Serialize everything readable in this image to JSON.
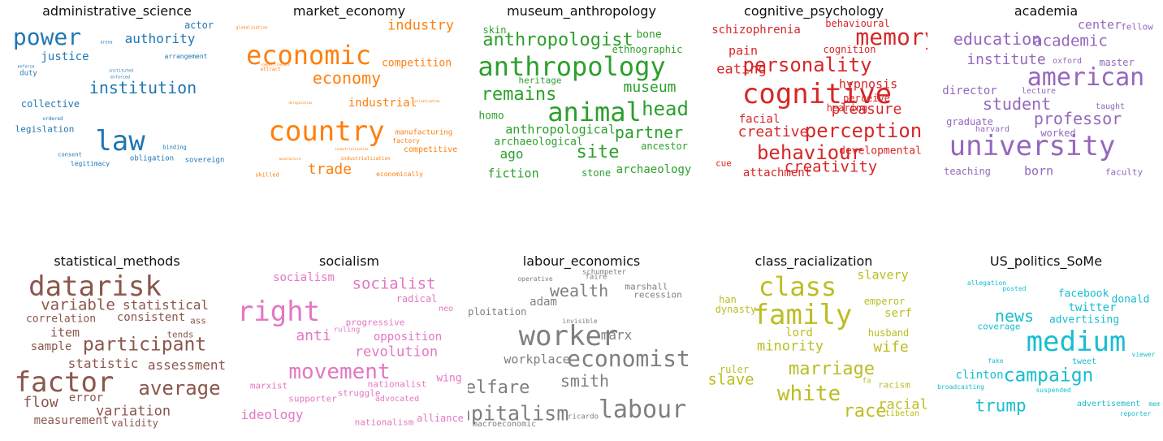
{
  "panels": [
    {
      "title": "administrative_science",
      "color": "#1f77b4",
      "words": [
        {
          "text": "power",
          "weight": 28
        },
        {
          "text": "authority",
          "weight": 16
        },
        {
          "text": "actor",
          "weight": 12
        },
        {
          "text": "justice",
          "weight": 14
        },
        {
          "text": "arrangement",
          "weight": 8
        },
        {
          "text": "arena",
          "weight": 5
        },
        {
          "text": "enforce",
          "weight": 5
        },
        {
          "text": "duty",
          "weight": 9
        },
        {
          "text": "institution",
          "weight": 20
        },
        {
          "text": "instituted",
          "weight": 5
        },
        {
          "text": "enforced",
          "weight": 5
        },
        {
          "text": "collective",
          "weight": 12
        },
        {
          "text": "ordered",
          "weight": 6
        },
        {
          "text": "legislation",
          "weight": 11
        },
        {
          "text": "law",
          "weight": 34
        },
        {
          "text": "binding",
          "weight": 7
        },
        {
          "text": "consent",
          "weight": 7
        },
        {
          "text": "obligation",
          "weight": 9
        },
        {
          "text": "sovereign",
          "weight": 9
        },
        {
          "text": "legitimacy",
          "weight": 8
        }
      ]
    },
    {
      "title": "market_economy",
      "color": "#ff7f0e",
      "words": [
        {
          "text": "globalisation",
          "weight": 5
        },
        {
          "text": "industry",
          "weight": 17
        },
        {
          "text": "economic",
          "weight": 32
        },
        {
          "text": "competitiveness",
          "weight": 4
        },
        {
          "text": "attract",
          "weight": 6
        },
        {
          "text": "competition",
          "weight": 13
        },
        {
          "text": "economy",
          "weight": 20
        },
        {
          "text": "deregulation",
          "weight": 4
        },
        {
          "text": "industrial",
          "weight": 14
        },
        {
          "text": "privatization",
          "weight": 4
        },
        {
          "text": "country",
          "weight": 34
        },
        {
          "text": "manufacturing",
          "weight": 9
        },
        {
          "text": "factory",
          "weight": 8
        },
        {
          "text": "industrialisation",
          "weight": 4
        },
        {
          "text": "competitive",
          "weight": 10
        },
        {
          "text": "manufacture",
          "weight": 4
        },
        {
          "text": "industrialization",
          "weight": 6
        },
        {
          "text": "trade",
          "weight": 18
        },
        {
          "text": "skilled",
          "weight": 7
        },
        {
          "text": "economically",
          "weight": 8
        }
      ]
    },
    {
      "title": "museum_anthropology",
      "color": "#2ca02c",
      "words": [
        {
          "text": "skin",
          "weight": 12
        },
        {
          "text": "anthropologist",
          "weight": 22
        },
        {
          "text": "bone",
          "weight": 13
        },
        {
          "text": "ethnographic",
          "weight": 12
        },
        {
          "text": "anthropology",
          "weight": 32
        },
        {
          "text": "heritage",
          "weight": 11
        },
        {
          "text": "remains",
          "weight": 22
        },
        {
          "text": "museum",
          "weight": 18
        },
        {
          "text": "animal",
          "weight": 32
        },
        {
          "text": "head",
          "weight": 24
        },
        {
          "text": "homo",
          "weight": 13
        },
        {
          "text": "anthropological",
          "weight": 15
        },
        {
          "text": "partner",
          "weight": 20
        },
        {
          "text": "archaeological",
          "weight": 13
        },
        {
          "text": "ancestor",
          "weight": 12
        },
        {
          "text": "ago",
          "weight": 16
        },
        {
          "text": "site",
          "weight": 22
        },
        {
          "text": "archaeology",
          "weight": 14
        },
        {
          "text": "fiction",
          "weight": 15
        },
        {
          "text": "stone",
          "weight": 12
        }
      ]
    },
    {
      "title": "cognitive_psychology",
      "color": "#d62728",
      "words": [
        {
          "text": "behavioural",
          "weight": 12
        },
        {
          "text": "schizophrenia",
          "weight": 14
        },
        {
          "text": "memory",
          "weight": 28
        },
        {
          "text": "pain",
          "weight": 15
        },
        {
          "text": "cognition",
          "weight": 12
        },
        {
          "text": "eating",
          "weight": 17
        },
        {
          "text": "personality",
          "weight": 24
        },
        {
          "text": "cognitive",
          "weight": 34
        },
        {
          "text": "hypnosis",
          "weight": 15
        },
        {
          "text": "perceive",
          "weight": 12
        },
        {
          "text": "hearing",
          "weight": 12
        },
        {
          "text": "pleasure",
          "weight": 18
        },
        {
          "text": "facial",
          "weight": 14
        },
        {
          "text": "creative",
          "weight": 18
        },
        {
          "text": "perception",
          "weight": 24
        },
        {
          "text": "behaviour",
          "weight": 24
        },
        {
          "text": "developmental",
          "weight": 13
        },
        {
          "text": "creativity",
          "weight": 19
        },
        {
          "text": "cue",
          "weight": 11
        },
        {
          "text": "attachment",
          "weight": 14
        }
      ]
    },
    {
      "title": "academia",
      "color": "#9467bd",
      "words": [
        {
          "text": "center",
          "weight": 15
        },
        {
          "text": "fellow",
          "weight": 11
        },
        {
          "text": "education",
          "weight": 20
        },
        {
          "text": "academic",
          "weight": 19
        },
        {
          "text": "institute",
          "weight": 18
        },
        {
          "text": "oxford",
          "weight": 10
        },
        {
          "text": "master",
          "weight": 12
        },
        {
          "text": "american",
          "weight": 30
        },
        {
          "text": "director",
          "weight": 14
        },
        {
          "text": "lecture",
          "weight": 10
        },
        {
          "text": "student",
          "weight": 20
        },
        {
          "text": "taught",
          "weight": 10
        },
        {
          "text": "graduate",
          "weight": 12
        },
        {
          "text": "professor",
          "weight": 20
        },
        {
          "text": "harvard",
          "weight": 10
        },
        {
          "text": "worked",
          "weight": 12
        },
        {
          "text": "university",
          "weight": 34
        },
        {
          "text": "teaching",
          "weight": 12
        },
        {
          "text": "born",
          "weight": 15
        },
        {
          "text": "faculty",
          "weight": 11
        }
      ]
    },
    {
      "title": "statistical_methods",
      "color": "#8c564b",
      "words": [
        {
          "text": "datarisk",
          "weight": 34
        },
        {
          "text": "variable",
          "weight": 19
        },
        {
          "text": "statistical",
          "weight": 16
        },
        {
          "text": "correlation",
          "weight": 13
        },
        {
          "text": "consistent",
          "weight": 14
        },
        {
          "text": "ass",
          "weight": 11
        },
        {
          "text": "item",
          "weight": 15
        },
        {
          "text": "tends",
          "weight": 11
        },
        {
          "text": "sample",
          "weight": 14
        },
        {
          "text": "participant",
          "weight": 23
        },
        {
          "text": "statistic",
          "weight": 16
        },
        {
          "text": "assessment",
          "weight": 16
        },
        {
          "text": "factor",
          "weight": 34
        },
        {
          "text": "average",
          "weight": 24
        },
        {
          "text": "flow",
          "weight": 18
        },
        {
          "text": "error",
          "weight": 14
        },
        {
          "text": "variation",
          "weight": 17
        },
        {
          "text": "measurement",
          "weight": 14
        },
        {
          "text": "validity",
          "weight": 12
        }
      ]
    },
    {
      "title": "socialism",
      "color": "#e377c2",
      "words": [
        {
          "text": "socialism",
          "weight": 14
        },
        {
          "text": "socialist",
          "weight": 19
        },
        {
          "text": "right",
          "weight": 34
        },
        {
          "text": "radical",
          "weight": 12
        },
        {
          "text": "neo",
          "weight": 10
        },
        {
          "text": "progressive",
          "weight": 11
        },
        {
          "text": "anti",
          "weight": 18
        },
        {
          "text": "ruling",
          "weight": 9
        },
        {
          "text": "opposition",
          "weight": 14
        },
        {
          "text": "revolution",
          "weight": 17
        },
        {
          "text": "movement",
          "weight": 26
        },
        {
          "text": "marxist",
          "weight": 11
        },
        {
          "text": "nationalist",
          "weight": 11
        },
        {
          "text": "wing",
          "weight": 13
        },
        {
          "text": "supporter",
          "weight": 11
        },
        {
          "text": "struggle",
          "weight": 11
        },
        {
          "text": "advocated",
          "weight": 10
        },
        {
          "text": "ideology",
          "weight": 16
        },
        {
          "text": "nationalism",
          "weight": 11
        },
        {
          "text": "alliance",
          "weight": 12
        }
      ]
    },
    {
      "title": "labour_economics",
      "color": "#7f7f7f",
      "words": [
        {
          "text": "schumpeter",
          "weight": 9
        },
        {
          "text": "operative",
          "weight": 8
        },
        {
          "text": "faire",
          "weight": 9
        },
        {
          "text": "wealth",
          "weight": 20
        },
        {
          "text": "marshall",
          "weight": 11
        },
        {
          "text": "recession",
          "weight": 11
        },
        {
          "text": "adam",
          "weight": 14
        },
        {
          "text": "exploitation",
          "weight": 12
        },
        {
          "text": "invisible",
          "weight": 8
        },
        {
          "text": "worker",
          "weight": 34
        },
        {
          "text": "marx",
          "weight": 16
        },
        {
          "text": "workplace",
          "weight": 15
        },
        {
          "text": "economist",
          "weight": 28
        },
        {
          "text": "welfare",
          "weight": 22
        },
        {
          "text": "smith",
          "weight": 20
        },
        {
          "text": "capitalism",
          "weight": 25
        },
        {
          "text": "ricardo",
          "weight": 9
        },
        {
          "text": "labour",
          "weight": 30
        },
        {
          "text": "macroeconomic",
          "weight": 10
        },
        {
          "text": "mill",
          "weight": 10
        }
      ]
    },
    {
      "title": "class_racialization",
      "color": "#bcbd22",
      "words": [
        {
          "text": "class",
          "weight": 32
        },
        {
          "text": "slavery",
          "weight": 15
        },
        {
          "text": "han",
          "weight": 12
        },
        {
          "text": "emperor",
          "weight": 12
        },
        {
          "text": "family",
          "weight": 34
        },
        {
          "text": "dynasty",
          "weight": 12
        },
        {
          "text": "serf",
          "weight": 14
        },
        {
          "text": "lord",
          "weight": 14
        },
        {
          "text": "husband",
          "weight": 12
        },
        {
          "text": "minority",
          "weight": 17
        },
        {
          "text": "wife",
          "weight": 18
        },
        {
          "text": "ruler",
          "weight": 12
        },
        {
          "text": "marriage",
          "weight": 22
        },
        {
          "text": "slave",
          "weight": 19
        },
        {
          "text": "fa",
          "weight": 9
        },
        {
          "text": "racism",
          "weight": 11
        },
        {
          "text": "white",
          "weight": 26
        },
        {
          "text": "racial",
          "weight": 17
        },
        {
          "text": "race",
          "weight": 22
        },
        {
          "text": "tibetan",
          "weight": 10
        }
      ]
    },
    {
      "title": "US_politics_SoMe",
      "color": "#17becf",
      "words": [
        {
          "text": "allegation",
          "weight": 8
        },
        {
          "text": "posted",
          "weight": 8
        },
        {
          "text": "facebook",
          "weight": 13
        },
        {
          "text": "donald",
          "weight": 13
        },
        {
          "text": "twitter",
          "weight": 14
        },
        {
          "text": "news",
          "weight": 20
        },
        {
          "text": "advertising",
          "weight": 13
        },
        {
          "text": "coverage",
          "weight": 11
        },
        {
          "text": "medium",
          "weight": 34
        },
        {
          "text": "viewer",
          "weight": 8
        },
        {
          "text": "fake",
          "weight": 8
        },
        {
          "text": "tweet",
          "weight": 10
        },
        {
          "text": "clinton",
          "weight": 14
        },
        {
          "text": "campaign",
          "weight": 23
        },
        {
          "text": "broadcasting",
          "weight": 8
        },
        {
          "text": "suspended",
          "weight": 8
        },
        {
          "text": "trump",
          "weight": 21
        },
        {
          "text": "advertisement",
          "weight": 10
        },
        {
          "text": "meme",
          "weight": 8
        },
        {
          "text": "reporter",
          "weight": 8
        }
      ]
    }
  ]
}
